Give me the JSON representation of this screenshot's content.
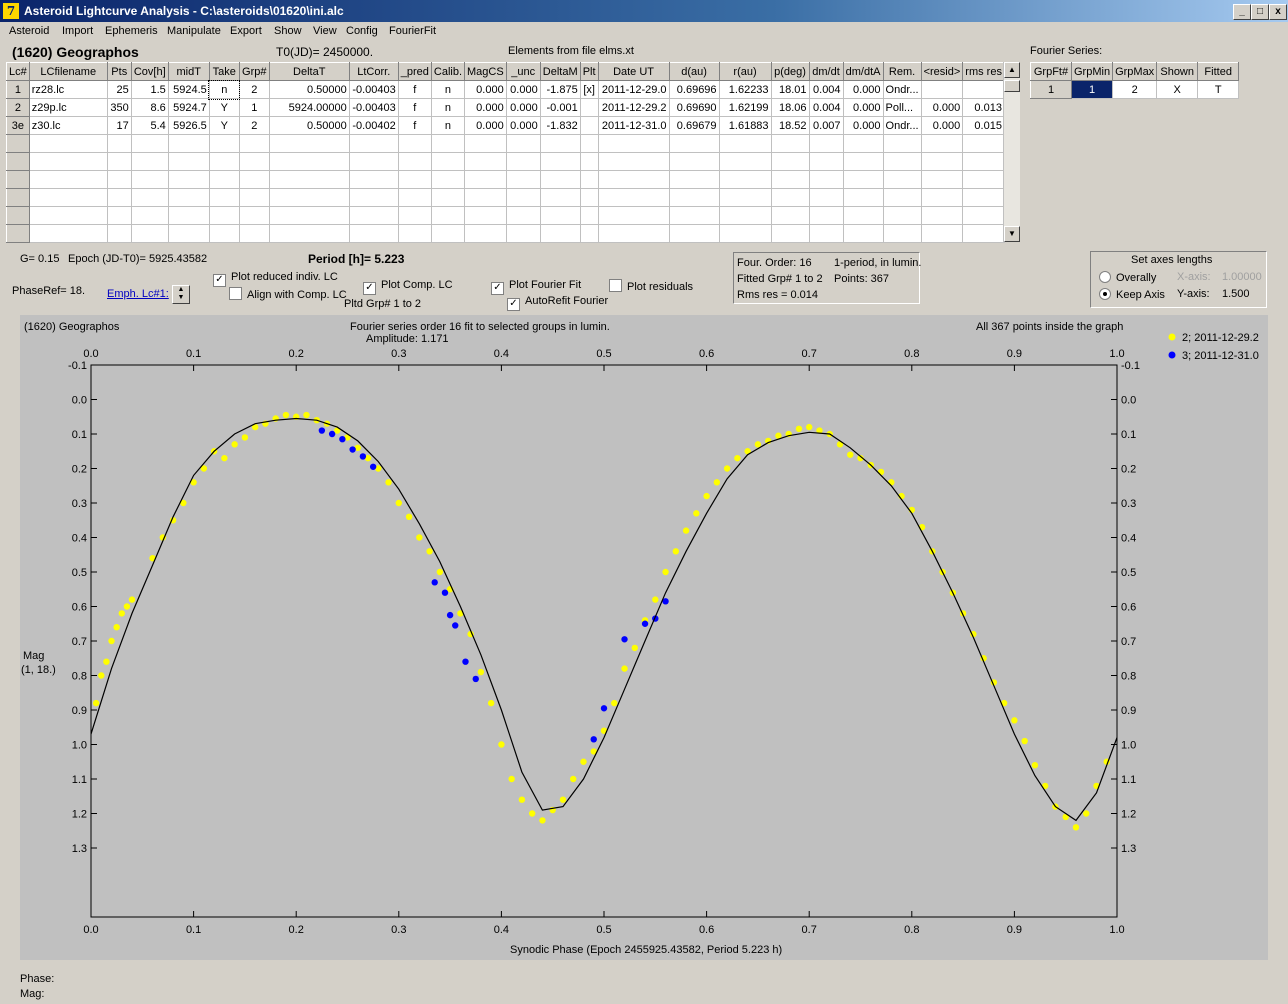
{
  "window": {
    "title": "Asteroid Lightcurve Analysis - C:\\asteroids\\01620\\ini.alc",
    "icon": "app-icon",
    "min_label": "_",
    "max_label": "□",
    "close_label": "x"
  },
  "menu": [
    "Asteroid",
    "Import",
    "Ephemeris",
    "Manipulate",
    "Export",
    "Show",
    "View",
    "Config",
    "FourierFit"
  ],
  "header": {
    "asteroid": "(1620) Geographos",
    "t0": "T0(JD)= 2450000.",
    "elements": "Elements from file elms.xt"
  },
  "lc_table": {
    "columns": [
      "Lc#",
      "LCfilename",
      "Pts",
      "Cov[h]",
      "midT",
      "Take",
      "Grp#",
      "DeltaT",
      "LtCorr.",
      "_pred",
      "Calib.",
      "MagCS",
      "_unc",
      "DeltaM",
      "Plt",
      "Date UT",
      "d(au)",
      "r(au)",
      "p(deg)",
      "dm/dt",
      "dm/dtA",
      "Rem.",
      "<resid>",
      "rms res"
    ],
    "rows": [
      [
        "1",
        "rz28.lc",
        "25",
        "1.5",
        "5924.5",
        "n",
        "2",
        "0.50000",
        "-0.00403",
        "f",
        "n",
        "0.000",
        "0.000",
        "-1.875",
        "[x]",
        "2011-12-29.0",
        "0.69696",
        "1.62233",
        "18.01",
        "0.004",
        "0.000",
        "Ondr...",
        "",
        ""
      ],
      [
        "2",
        "z29p.lc",
        "350",
        "8.6",
        "5924.7",
        "Y",
        "1",
        "5924.00000",
        "-0.00403",
        "f",
        "n",
        "0.000",
        "0.000",
        "-0.001",
        "",
        "2011-12-29.2",
        "0.69690",
        "1.62199",
        "18.06",
        "0.004",
        "0.000",
        "Poll...",
        "0.000",
        "0.013"
      ],
      [
        "3e",
        "z30.lc",
        "17",
        "5.4",
        "5926.5",
        "Y",
        "2",
        "0.50000",
        "-0.00402",
        "f",
        "n",
        "0.000",
        "0.000",
        "-1.832",
        "",
        "2011-12-31.0",
        "0.69679",
        "1.61883",
        "18.52",
        "0.007",
        "0.000",
        "Ondr...",
        "0.000",
        "0.015"
      ]
    ],
    "empty_rows": 6
  },
  "fourier_panel": {
    "title": "Fourier Series:",
    "columns": [
      "GrpFt#",
      "GrpMin",
      "GrpMax",
      "Shown",
      "Fitted"
    ],
    "row": [
      "1",
      "1",
      "2",
      "X",
      "T"
    ]
  },
  "params": {
    "g": "G= 0.15",
    "epoch": "Epoch (JD-T0)= 5925.43582",
    "period": "Period [h]= 5.223",
    "phaseref": "PhaseRef= 18.",
    "emph": "Emph. Lc#1:",
    "pltd_grp": "Pltd Grp#  1  to  2"
  },
  "checkboxes": {
    "reduced": {
      "label": "Plot reduced indiv. LC",
      "checked": true
    },
    "align": {
      "label": "Align with Comp. LC",
      "checked": false
    },
    "comp": {
      "label": "Plot Comp. LC",
      "checked": true
    },
    "fourier": {
      "label": "Plot Fourier Fit",
      "checked": true
    },
    "residuals": {
      "label": "Plot residuals",
      "checked": false
    },
    "autorefit": {
      "label": "AutoRefit Fourier",
      "checked": true
    }
  },
  "fit_info": {
    "order": "Four. Order: 16",
    "mode": "1-period, in lumin.",
    "fitted": "Fitted Grp# 1 to 2",
    "points": "Points: 367",
    "rms": "Rms res     = 0.014"
  },
  "axes_panel": {
    "title": "Set axes lengths",
    "overall": "Overally",
    "keep": "Keep Axis",
    "xaxis_label": "X-axis:",
    "xaxis_value": "1.00000",
    "yaxis_label": "Y-axis:",
    "yaxis_value": "1.500",
    "selected": "keep"
  },
  "plot": {
    "name": "(1620) Geographos",
    "subtitle1": "Fourier series order 16 fit to selected groups in lumin.",
    "subtitle2": "Amplitude: 1.171",
    "inside": "All 367 points inside the graph",
    "ylabel1": "Mag",
    "ylabel2": "(1, 18.)",
    "xlabel": "Synodic Phase (Epoch 2455925.43582, Period 5.223 h)"
  },
  "chart_data": {
    "type": "scatter",
    "x_ticks": [
      "0.0",
      "0.1",
      "0.2",
      "0.3",
      "0.4",
      "0.5",
      "0.6",
      "0.7",
      "0.8",
      "0.9",
      "1.0"
    ],
    "y_ticks": [
      "-0.1",
      "0.0",
      "0.1",
      "0.2",
      "0.3",
      "0.4",
      "0.5",
      "0.6",
      "0.7",
      "0.8",
      "0.9",
      "1.0",
      "1.1",
      "1.2",
      "1.3"
    ],
    "xlim": [
      0,
      1
    ],
    "ylim": [
      1.5,
      -0.1
    ],
    "y_inverted": true,
    "legend_position": "right",
    "fit_curve": {
      "x": [
        0.0,
        0.02,
        0.04,
        0.06,
        0.08,
        0.1,
        0.12,
        0.14,
        0.16,
        0.18,
        0.2,
        0.22,
        0.24,
        0.26,
        0.28,
        0.3,
        0.32,
        0.34,
        0.36,
        0.38,
        0.4,
        0.42,
        0.44,
        0.46,
        0.48,
        0.5,
        0.52,
        0.54,
        0.56,
        0.58,
        0.6,
        0.62,
        0.64,
        0.66,
        0.68,
        0.7,
        0.72,
        0.74,
        0.76,
        0.78,
        0.8,
        0.82,
        0.84,
        0.86,
        0.88,
        0.9,
        0.92,
        0.94,
        0.96,
        0.98,
        1.0
      ],
      "y": [
        0.97,
        0.78,
        0.62,
        0.48,
        0.34,
        0.22,
        0.15,
        0.1,
        0.07,
        0.06,
        0.055,
        0.06,
        0.08,
        0.12,
        0.18,
        0.26,
        0.36,
        0.47,
        0.6,
        0.74,
        0.9,
        1.08,
        1.19,
        1.18,
        1.1,
        0.98,
        0.84,
        0.7,
        0.56,
        0.44,
        0.33,
        0.23,
        0.16,
        0.125,
        0.105,
        0.095,
        0.1,
        0.14,
        0.19,
        0.25,
        0.33,
        0.44,
        0.56,
        0.69,
        0.83,
        0.97,
        1.09,
        1.18,
        1.22,
        1.14,
        0.98
      ],
      "color": "#000000"
    },
    "series": [
      {
        "name": "2; 2011-12-29.2",
        "color": "#ffff00",
        "x": [
          0.005,
          0.01,
          0.015,
          0.02,
          0.025,
          0.03,
          0.035,
          0.04,
          0.06,
          0.07,
          0.08,
          0.09,
          0.1,
          0.11,
          0.12,
          0.13,
          0.14,
          0.15,
          0.16,
          0.17,
          0.18,
          0.19,
          0.2,
          0.21,
          0.22,
          0.23,
          0.24,
          0.25,
          0.26,
          0.27,
          0.28,
          0.29,
          0.3,
          0.31,
          0.32,
          0.33,
          0.34,
          0.35,
          0.36,
          0.37,
          0.38,
          0.39,
          0.4,
          0.41,
          0.42,
          0.43,
          0.44,
          0.45,
          0.46,
          0.47,
          0.48,
          0.49,
          0.5,
          0.51,
          0.52,
          0.53,
          0.54,
          0.55,
          0.56,
          0.57,
          0.58,
          0.59,
          0.6,
          0.61,
          0.62,
          0.63,
          0.64,
          0.65,
          0.66,
          0.67,
          0.68,
          0.69,
          0.7,
          0.71,
          0.72,
          0.73,
          0.74,
          0.75,
          0.76,
          0.77,
          0.78,
          0.79,
          0.8,
          0.81,
          0.82,
          0.83,
          0.84,
          0.85,
          0.86,
          0.87,
          0.88,
          0.89,
          0.9,
          0.91,
          0.92,
          0.93,
          0.94,
          0.95,
          0.96,
          0.97,
          0.98,
          0.99
        ],
        "y": [
          0.88,
          0.8,
          0.76,
          0.7,
          0.66,
          0.62,
          0.6,
          0.58,
          0.46,
          0.4,
          0.35,
          0.3,
          0.24,
          0.2,
          0.15,
          0.17,
          0.13,
          0.11,
          0.08,
          0.07,
          0.055,
          0.045,
          0.05,
          0.045,
          0.06,
          0.07,
          0.09,
          0.11,
          0.14,
          0.17,
          0.2,
          0.24,
          0.3,
          0.34,
          0.4,
          0.44,
          0.5,
          0.55,
          0.62,
          0.68,
          0.79,
          0.88,
          1.0,
          1.1,
          1.16,
          1.2,
          1.22,
          1.19,
          1.16,
          1.1,
          1.05,
          1.02,
          0.96,
          0.88,
          0.78,
          0.72,
          0.64,
          0.58,
          0.5,
          0.44,
          0.38,
          0.33,
          0.28,
          0.24,
          0.2,
          0.17,
          0.15,
          0.13,
          0.12,
          0.105,
          0.1,
          0.085,
          0.08,
          0.09,
          0.1,
          0.13,
          0.16,
          0.17,
          0.19,
          0.21,
          0.24,
          0.28,
          0.32,
          0.37,
          0.44,
          0.5,
          0.56,
          0.62,
          0.68,
          0.75,
          0.82,
          0.88,
          0.93,
          0.99,
          1.06,
          1.12,
          1.18,
          1.21,
          1.24,
          1.2,
          1.12,
          1.05
        ]
      },
      {
        "name": "3; 2011-12-31.0",
        "color": "#0000ff",
        "x": [
          0.225,
          0.235,
          0.245,
          0.255,
          0.265,
          0.275,
          0.335,
          0.345,
          0.35,
          0.355,
          0.365,
          0.375,
          0.49,
          0.5,
          0.52,
          0.54,
          0.55,
          0.56
        ],
        "y": [
          0.09,
          0.1,
          0.115,
          0.145,
          0.165,
          0.195,
          0.53,
          0.56,
          0.625,
          0.655,
          0.76,
          0.81,
          0.985,
          0.895,
          0.695,
          0.65,
          0.635,
          0.585
        ]
      }
    ]
  },
  "footer": {
    "phase": "Phase:",
    "mag": "Mag:"
  }
}
